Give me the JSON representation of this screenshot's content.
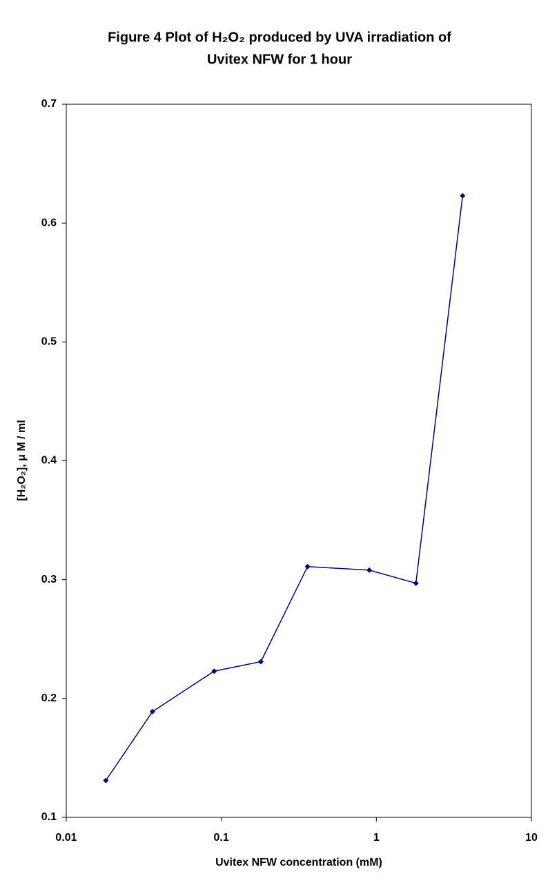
{
  "chart_data": {
    "type": "line",
    "title": [
      "Figure 4   Plot of H₂O₂ produced by UVA irradiation of",
      "Uvitex NFW for 1 hour"
    ],
    "x_label": "Uvitex NFW concentration (mM)",
    "y_label": "[H₂O₂], μ M / ml",
    "x": [
      0.018,
      0.036,
      0.09,
      0.18,
      0.36,
      0.9,
      1.8,
      3.6
    ],
    "series": [
      {
        "name": "H₂O₂",
        "color": "#000080",
        "values": [
          0.131,
          0.189,
          0.223,
          0.231,
          0.311,
          0.308,
          0.297,
          0.623
        ]
      }
    ],
    "xlim": [
      0.01,
      10
    ],
    "xticks": [
      0.01,
      0.1,
      1,
      10
    ],
    "x_log": true,
    "ylim": [
      0.1,
      0.7
    ],
    "yticks": [
      0.1,
      0.2,
      0.3,
      0.4,
      0.5,
      0.6,
      0.7
    ],
    "grid": false,
    "legend": false
  }
}
